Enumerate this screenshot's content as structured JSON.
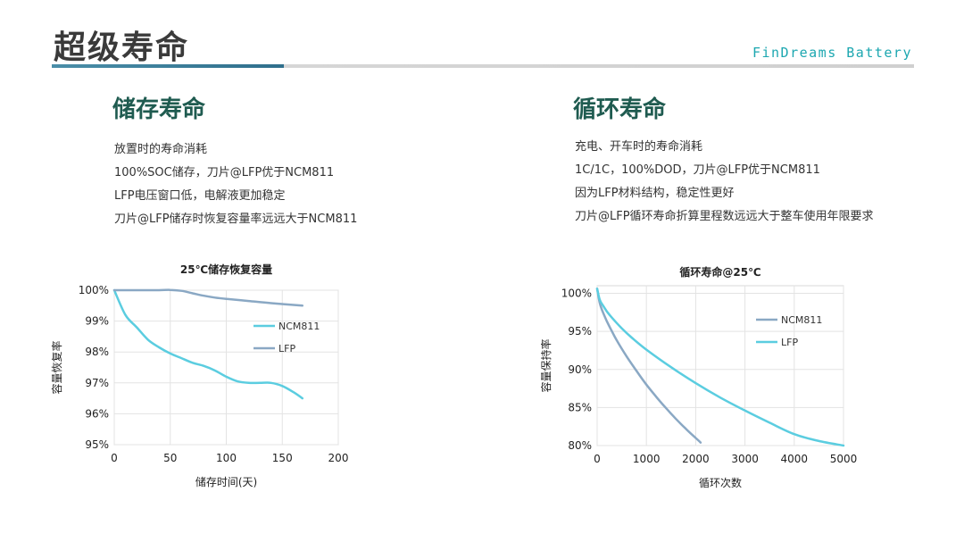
{
  "header": {
    "title": "超级寿命",
    "brand": "FinDreams Battery"
  },
  "left": {
    "heading": "储存寿命",
    "bullets": [
      "放置时的寿命消耗",
      "100%SOC储存，刀片@LFP优于NCM811",
      "LFP电压窗口低，电解液更加稳定",
      "刀片@LFP储存时恢复容量率远远大于NCM811"
    ]
  },
  "right": {
    "heading": "循环寿命",
    "bullets": [
      "充电、开车时的寿命消耗",
      "1C/1C，100%DOD，刀片@LFP优于NCM811",
      "因为LFP材料结构，稳定性更好",
      "刀片@LFP循环寿命折算里程数远远大于整车使用年限要求"
    ]
  },
  "colors": {
    "ncm811_storage": "#5bcde0",
    "lfp_storage": "#8aa8c4",
    "ncm811_cycle": "#8aa8c4",
    "lfp_cycle": "#5bcde0"
  },
  "chart_data": [
    {
      "type": "line",
      "title": "25℃储存恢复容量",
      "xlabel": "储存时间(天)",
      "ylabel": "容量恢复率",
      "xlim": [
        0,
        200
      ],
      "ylim": [
        95,
        100
      ],
      "xticks": [
        "0",
        "50",
        "100",
        "150",
        "200"
      ],
      "yticks": [
        "95%",
        "96%",
        "97%",
        "98%",
        "99%",
        "100%"
      ],
      "legend_position": "right",
      "grid": true,
      "series": [
        {
          "name": "NCM811",
          "x": [
            0,
            10,
            20,
            30,
            40,
            50,
            60,
            70,
            80,
            90,
            100,
            110,
            120,
            130,
            140,
            150,
            160,
            168
          ],
          "y": [
            100,
            99.2,
            98.8,
            98.4,
            98.15,
            97.95,
            97.8,
            97.65,
            97.55,
            97.4,
            97.2,
            97.05,
            97.0,
            97.0,
            97.0,
            96.9,
            96.7,
            96.5
          ]
        },
        {
          "name": "LFP",
          "x": [
            0,
            20,
            40,
            50,
            60,
            70,
            80,
            90,
            100,
            120,
            140,
            168
          ],
          "y": [
            100,
            100,
            100,
            100.01,
            99.98,
            99.9,
            99.82,
            99.76,
            99.72,
            99.65,
            99.58,
            99.5
          ]
        }
      ]
    },
    {
      "type": "line",
      "title": "循环寿命@25℃",
      "xlabel": "循环次数",
      "ylabel": "容量保持率",
      "xlim": [
        0,
        5000
      ],
      "ylim": [
        80,
        101
      ],
      "xticks": [
        "0",
        "1000",
        "2000",
        "3000",
        "4000",
        "5000"
      ],
      "yticks": [
        "80%",
        "85%",
        "90%",
        "95%",
        "100%"
      ],
      "legend_position": "right",
      "grid": true,
      "series": [
        {
          "name": "NCM811",
          "x": [
            0,
            50,
            100,
            200,
            300,
            400,
            600,
            800,
            1000,
            1200,
            1400,
            1600,
            1800,
            2000,
            2100
          ],
          "y": [
            100.6,
            98.8,
            97.8,
            96.3,
            95.0,
            93.8,
            91.7,
            89.8,
            88.0,
            86.4,
            84.9,
            83.5,
            82.2,
            81.0,
            80.4
          ]
        },
        {
          "name": "LFP",
          "x": [
            0,
            50,
            100,
            200,
            300,
            500,
            700,
            1000,
            1500,
            2000,
            2500,
            3000,
            3500,
            4000,
            4500,
            5000
          ],
          "y": [
            100.6,
            99.2,
            98.6,
            97.6,
            96.8,
            95.4,
            94.2,
            92.6,
            90.3,
            88.2,
            86.3,
            84.6,
            83.0,
            81.5,
            80.6,
            80.0
          ]
        }
      ]
    }
  ]
}
